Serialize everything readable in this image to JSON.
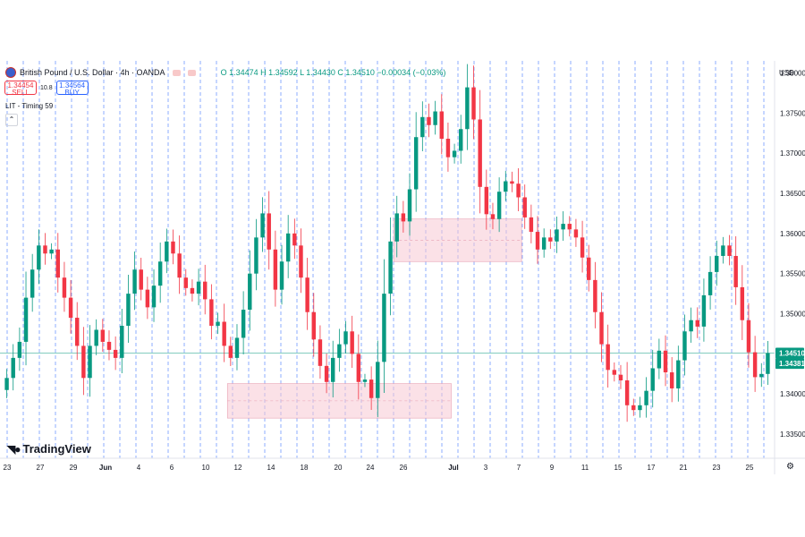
{
  "header": {
    "symbol_title": "British Pound / U.S. Dollar · 4h · OANDA",
    "ohlc": "O 1.34474  H 1.34592  L 1.34430  C 1.34510  −0.00034 (−0.03%)"
  },
  "trade": {
    "sell_price": "1.34454",
    "sell_label": "SELL",
    "spread": "10.8",
    "buy_price": "1.34564",
    "buy_label": "BUY"
  },
  "indicator": {
    "label": "LIT - Timing 59"
  },
  "axis": {
    "currency": "USD"
  },
  "branding": {
    "logo_text": "TradingView"
  },
  "colors": {
    "up": "#089981",
    "down": "#f23645",
    "zone_fill": "#f8c9d4",
    "zone_stroke": "#e8a1b3",
    "vline": "#2962ff"
  },
  "chart_data": {
    "type": "candlestick",
    "y_axis_labels": [
      "1.38000",
      "1.37500",
      "1.37000",
      "1.36500",
      "1.36000",
      "1.35500",
      "1.35000",
      "1.34000",
      "1.33500"
    ],
    "y_ticks": [
      1.38,
      1.375,
      1.37,
      1.365,
      1.36,
      1.355,
      1.35,
      1.34,
      1.335
    ],
    "ylim": [
      1.332,
      1.3815
    ],
    "x_labels": [
      "23",
      "27",
      "29",
      "Jun",
      "4",
      "6",
      "10",
      "12",
      "14",
      "18",
      "20",
      "24",
      "26",
      "Jul",
      "3",
      "7",
      "9",
      "11",
      "15",
      "17",
      "21",
      "23",
      "25"
    ],
    "last_price": 1.3451,
    "last_price_label": "1.34510",
    "bid_price": 1.34381,
    "bid_price_label": "1.34381",
    "zones": [
      {
        "x_start": 61,
        "x_end": 80,
        "y_low": 1.3565,
        "y_high": 1.3618
      },
      {
        "x_start": 35,
        "x_end": 69,
        "y_low": 1.337,
        "y_high": 1.3413
      }
    ],
    "closes": [
      1.342,
      1.3445,
      1.3465,
      1.352,
      1.3555,
      1.3585,
      1.3575,
      1.358,
      1.3545,
      1.352,
      1.3495,
      1.346,
      1.342,
      1.346,
      1.348,
      1.3465,
      1.3455,
      1.3445,
      1.3485,
      1.3525,
      1.3555,
      1.353,
      1.3508,
      1.3535,
      1.3565,
      1.359,
      1.3575,
      1.3545,
      1.3532,
      1.3525,
      1.354,
      1.3518,
      1.3485,
      1.349,
      1.346,
      1.3445,
      1.347,
      1.3505,
      1.355,
      1.3595,
      1.3625,
      1.358,
      1.353,
      1.3565,
      1.36,
      1.3585,
      1.3545,
      1.3502,
      1.3468,
      1.3435,
      1.3415,
      1.3445,
      1.3462,
      1.3478,
      1.345,
      1.3415,
      1.3418,
      1.3395,
      1.344,
      1.3525,
      1.359,
      1.3625,
      1.3615,
      1.3655,
      1.372,
      1.3745,
      1.3735,
      1.3752,
      1.3718,
      1.3695,
      1.3703,
      1.373,
      1.3782,
      1.3742,
      1.3658,
      1.3624,
      1.3618,
      1.3652,
      1.3665,
      1.3662,
      1.3645,
      1.362,
      1.3602,
      1.358,
      1.3595,
      1.359,
      1.3605,
      1.3612,
      1.3605,
      1.3595,
      1.357,
      1.3542,
      1.3502,
      1.3462,
      1.343,
      1.3424,
      1.3417,
      1.3386,
      1.338,
      1.3386,
      1.3404,
      1.3432,
      1.3454,
      1.3427,
      1.3407,
      1.3442,
      1.3478,
      1.3492,
      1.3484,
      1.3523,
      1.3552,
      1.3572,
      1.3585,
      1.3572,
      1.3533,
      1.3492,
      1.3452,
      1.3421,
      1.3425,
      1.3451
    ]
  }
}
